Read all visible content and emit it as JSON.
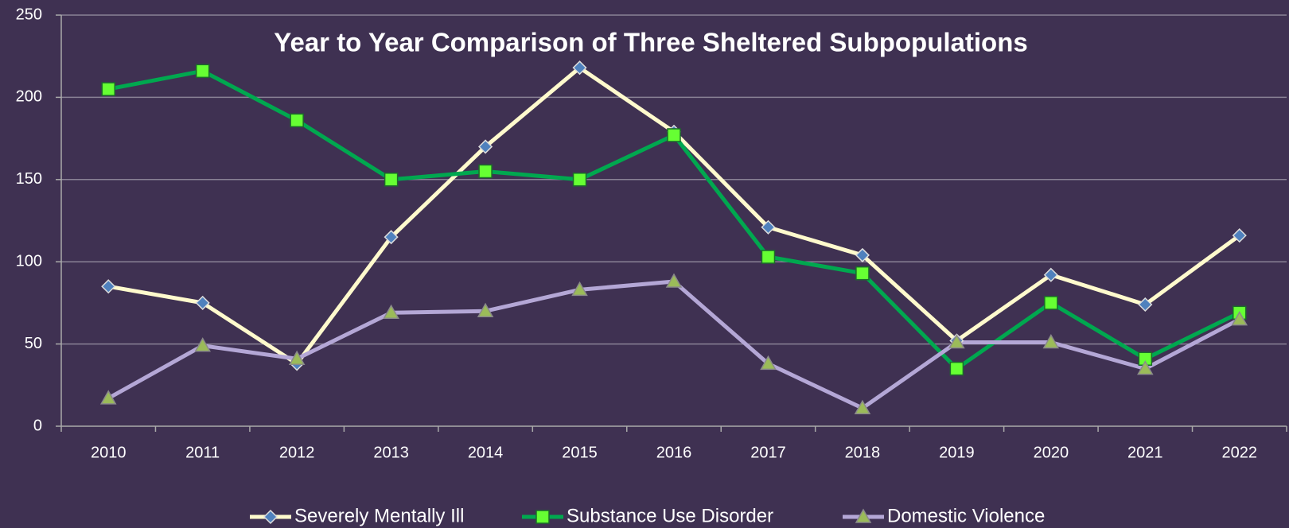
{
  "chart_data": {
    "type": "line",
    "title": "Year to Year Comparison of Three Sheltered Subpopulations",
    "categories": [
      "2010",
      "2011",
      "2012",
      "2013",
      "2014",
      "2015",
      "2016",
      "2017",
      "2018",
      "2019",
      "2020",
      "2021",
      "2022"
    ],
    "series": [
      {
        "name": "Severely Mentally Ill",
        "color": "#fffacd",
        "marker": "diamond",
        "marker_color": "#4f81bd",
        "values": [
          85,
          75,
          38,
          115,
          170,
          218,
          179,
          121,
          104,
          52,
          92,
          74,
          116
        ]
      },
      {
        "name": "Substance Use Disorder",
        "color": "#00a84f",
        "marker": "square",
        "marker_color": "#66ff33",
        "values": [
          205,
          216,
          186,
          150,
          155,
          150,
          177,
          103,
          93,
          35,
          75,
          41,
          69
        ]
      },
      {
        "name": "Domestic Violence",
        "color": "#b4a7d6",
        "marker": "triangle",
        "marker_color": "#9bbb59",
        "values": [
          17,
          49,
          41,
          69,
          70,
          83,
          88,
          38,
          11,
          51,
          51,
          35,
          65
        ]
      }
    ],
    "ylim": [
      0,
      250
    ],
    "yticks": [
      0,
      50,
      100,
      150,
      200,
      250
    ],
    "grid": true,
    "legend": "bottom"
  }
}
